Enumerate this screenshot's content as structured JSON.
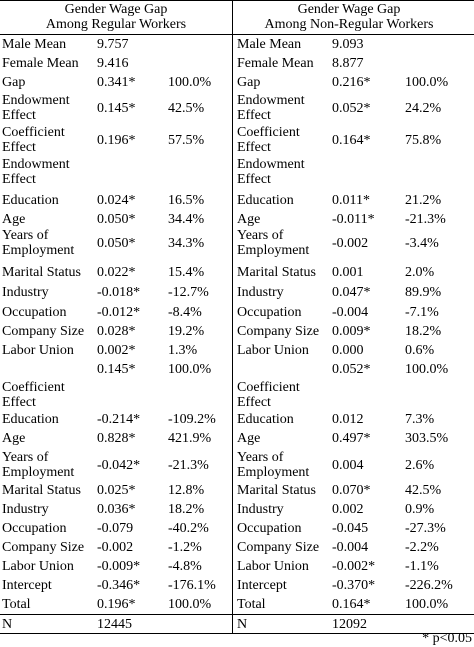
{
  "header": {
    "left": [
      "Gender Wage Gap",
      "Among Regular Workers"
    ],
    "right": [
      "Gender Wage Gap",
      "Among Non-Regular Workers"
    ]
  },
  "rows": [
    {
      "left": [
        "Male Mean",
        "9.757",
        ""
      ],
      "right": [
        "Male Mean",
        "9.093",
        ""
      ]
    },
    {
      "left": [
        "Female Mean",
        "9.416",
        ""
      ],
      "right": [
        "Female Mean",
        "8.877",
        ""
      ]
    },
    {
      "left": [
        "Gap",
        "0.341*",
        "100.0%"
      ],
      "right": [
        "Gap",
        "0.216*",
        "100.0%"
      ]
    },
    {
      "left": [
        "Endowment\nEffect",
        "0.145*",
        "42.5%"
      ],
      "right": [
        "Endowment\nEffect",
        "0.052*",
        "24.2%"
      ]
    },
    {
      "left": [
        "Coefficient\nEffect",
        "0.196*",
        "57.5%"
      ],
      "right": [
        "Coefficient\nEffect",
        "0.164*",
        "75.8%"
      ]
    },
    {
      "left": [
        "Endowment\nEffect",
        "",
        ""
      ],
      "right": [
        "Endowment\nEffect",
        "",
        ""
      ]
    },
    {
      "left": [
        "Education",
        "0.024*",
        "16.5%"
      ],
      "right": [
        "Education",
        "0.011*",
        "21.2%"
      ]
    },
    {
      "left": [
        "Age",
        "0.050*",
        "34.4%"
      ],
      "right": [
        "Age",
        "-0.011*",
        "-21.3%"
      ]
    },
    {
      "left": [
        "Years of\nEmployment",
        "0.050*",
        "34.3%"
      ],
      "right": [
        "Years of\nEmployment",
        "-0.002",
        "-3.4%"
      ]
    },
    {
      "left": [
        "Marital Status",
        "0.022*",
        "15.4%"
      ],
      "right": [
        "Marital Status",
        "0.001",
        "2.0%"
      ]
    },
    {
      "left": [
        "Industry",
        "-0.018*",
        "-12.7%"
      ],
      "right": [
        "Industry",
        "0.047*",
        "89.9%"
      ]
    },
    {
      "left": [
        "Occupation",
        "-0.012*",
        "-8.4%"
      ],
      "right": [
        "Occupation",
        "-0.004",
        "-7.1%"
      ]
    },
    {
      "left": [
        "Company Size",
        "0.028*",
        "19.2%"
      ],
      "right": [
        "Company Size",
        "0.009*",
        "18.2%"
      ]
    },
    {
      "left": [
        "Labor Union",
        "0.002*",
        "1.3%"
      ],
      "right": [
        "Labor Union",
        "0.000",
        "0.6%"
      ]
    },
    {
      "left": [
        "",
        "0.145*",
        "100.0%"
      ],
      "right": [
        "",
        "0.052*",
        "100.0%"
      ]
    },
    {
      "left": [
        "Coefficient\nEffect",
        "",
        ""
      ],
      "right": [
        "Coefficient\nEffect",
        "",
        ""
      ]
    },
    {
      "left": [
        "Education",
        "-0.214*",
        "-109.2%"
      ],
      "right": [
        "Education",
        "0.012",
        "7.3%"
      ]
    },
    {
      "left": [
        "Age",
        "0.828*",
        "421.9%"
      ],
      "right": [
        "Age",
        "0.497*",
        "303.5%"
      ]
    },
    {
      "left": [
        "Years of\nEmployment",
        "-0.042*",
        "-21.3%"
      ],
      "right": [
        "Years of\nEmployment",
        "0.004",
        "2.6%"
      ]
    },
    {
      "left": [
        "Marital Status",
        "0.025*",
        "12.8%"
      ],
      "right": [
        "Marital Status",
        "0.070*",
        "42.5%"
      ]
    },
    {
      "left": [
        "Industry",
        "0.036*",
        "18.2%"
      ],
      "right": [
        "Industry",
        "0.002",
        "0.9%"
      ]
    },
    {
      "left": [
        "Occupation",
        "-0.079",
        "-40.2%"
      ],
      "right": [
        "Occupation",
        "-0.045",
        "-27.3%"
      ]
    },
    {
      "left": [
        "Company Size",
        "-0.002",
        "-1.2%"
      ],
      "right": [
        "Company Size",
        "-0.004",
        "-2.2%"
      ]
    },
    {
      "left": [
        "Labor Union",
        "-0.009*",
        "-4.8%"
      ],
      "right": [
        "Labor Union",
        "-0.002*",
        "-1.1%"
      ]
    },
    {
      "left": [
        "Intercept",
        "-0.346*",
        "-176.1%"
      ],
      "right": [
        "Intercept",
        "-0.370*",
        "-226.2%"
      ]
    },
    {
      "left": [
        "Total",
        "0.196*",
        "100.0%"
      ],
      "right": [
        "Total",
        "0.164*",
        "100.0%"
      ]
    },
    {
      "left": [
        "N",
        "12445",
        ""
      ],
      "right": [
        "N",
        "12092",
        ""
      ]
    }
  ],
  "footnote": "* p<0.05"
}
